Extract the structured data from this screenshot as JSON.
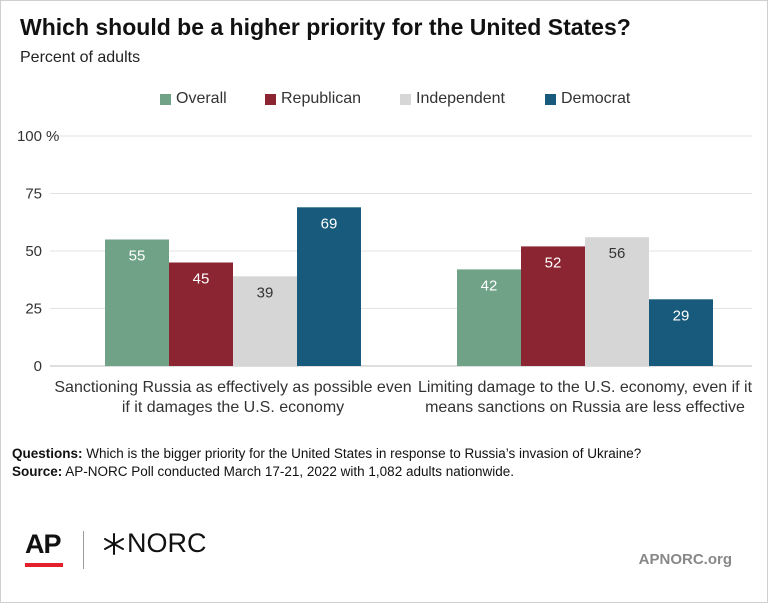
{
  "header": {
    "title": "Which should be a higher priority for the United States?",
    "subtitle": "Percent of adults"
  },
  "chart_data": {
    "type": "bar",
    "categories": [
      [
        "Sanctioning Russia as effectively as possible even",
        "if it damages the U.S. economy"
      ],
      [
        "Limiting damage to the U.S. economy, even if it",
        "means sanctions on Russia are less effective"
      ]
    ],
    "series": [
      {
        "name": "Overall",
        "color": "#6fa287",
        "label_color": "#ffffff",
        "values": [
          55,
          42
        ]
      },
      {
        "name": "Republican",
        "color": "#8b2532",
        "label_color": "#ffffff",
        "values": [
          45,
          52
        ]
      },
      {
        "name": "Independent",
        "color": "#d6d6d6",
        "label_color": "#333333",
        "values": [
          39,
          56
        ]
      },
      {
        "name": "Democrat",
        "color": "#175a7b",
        "label_color": "#ffffff",
        "values": [
          69,
          29
        ]
      }
    ],
    "y_ticks": [
      0,
      25,
      50,
      75,
      100
    ],
    "y_unit": "%",
    "ylim": [
      0,
      100
    ],
    "grid": true,
    "legend": "top-center"
  },
  "footnote": {
    "questions_label": "Questions:",
    "questions_text": " Which is the bigger priority for the United States in response to Russia’s invasion of Ukraine?",
    "source_label": "Source:",
    "source_text": " AP-NORC Poll conducted March 17-21, 2022 with 1,082 adults nationwide."
  },
  "branding": {
    "ap_logo": "AP",
    "norc_logo": "NORC",
    "website": "APNORC.org"
  }
}
